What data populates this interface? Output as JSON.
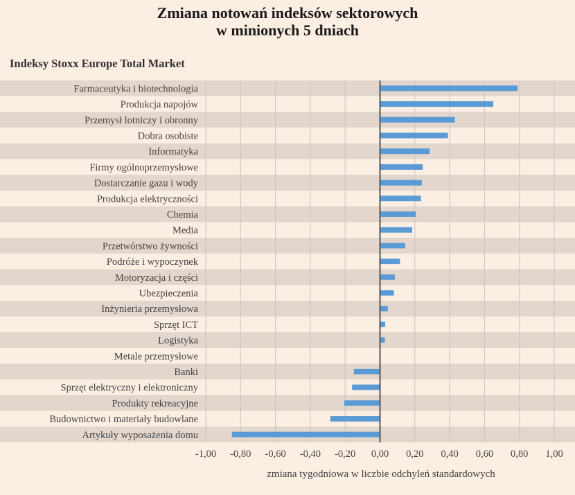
{
  "chart_data": {
    "type": "bar",
    "orientation": "horizontal",
    "title": [
      "Zmiana notowań indeksów sektorowych",
      "w minionych 5 dniach"
    ],
    "subtitle": "Indeksy Stoxx Europe Total Market",
    "xlabel": "zmiana tygodniowa w liczbie odchyleń standardowych",
    "xlim": [
      -1.0,
      1.0
    ],
    "ticks": [
      -1.0,
      -0.8,
      -0.6,
      -0.4,
      -0.2,
      0.0,
      0.2,
      0.4,
      0.6,
      0.8,
      1.0
    ],
    "tick_labels": [
      "-1,00",
      "-0,80",
      "-0,60",
      "-0,40",
      "-0,20",
      "0,00",
      "0,20",
      "0,40",
      "0,60",
      "0,80",
      "1,00"
    ],
    "grid": true,
    "bar_color": "#5b9bd5",
    "stripe_color": "#e3d6cc",
    "axis_color": "#555555",
    "categories": [
      "Farmaceutyka i biotechnologia",
      "Produkcja napojów",
      "Przemysł lotniczy i obronny",
      "Dobra osobiste",
      "Informatyka",
      "Firmy ogólnoprzemysłowe",
      "Dostarczanie gazu i wody",
      "Produkcja elektryczności",
      "Chemia",
      "Media",
      "Przetwórstwo żywności",
      "Podróże i wypoczynek",
      "Motoryzacja i części",
      "Ubezpieczenia",
      "Inżynieria przemysłowa",
      "Sprzęt ICT",
      "Logistyka",
      "Metale przemysłowe",
      "Banki",
      "Sprzęt elektryczny i elektroniczny",
      "Produkty rekreacyjne",
      "Budownictwo i materiały budowlane",
      "Artykuły wyposażenia domu"
    ],
    "values": [
      0.79,
      0.65,
      0.43,
      0.39,
      0.285,
      0.245,
      0.24,
      0.235,
      0.205,
      0.185,
      0.145,
      0.115,
      0.085,
      0.08,
      0.045,
      0.03,
      0.028,
      0.0,
      -0.15,
      -0.16,
      -0.205,
      -0.285,
      -0.85
    ]
  }
}
